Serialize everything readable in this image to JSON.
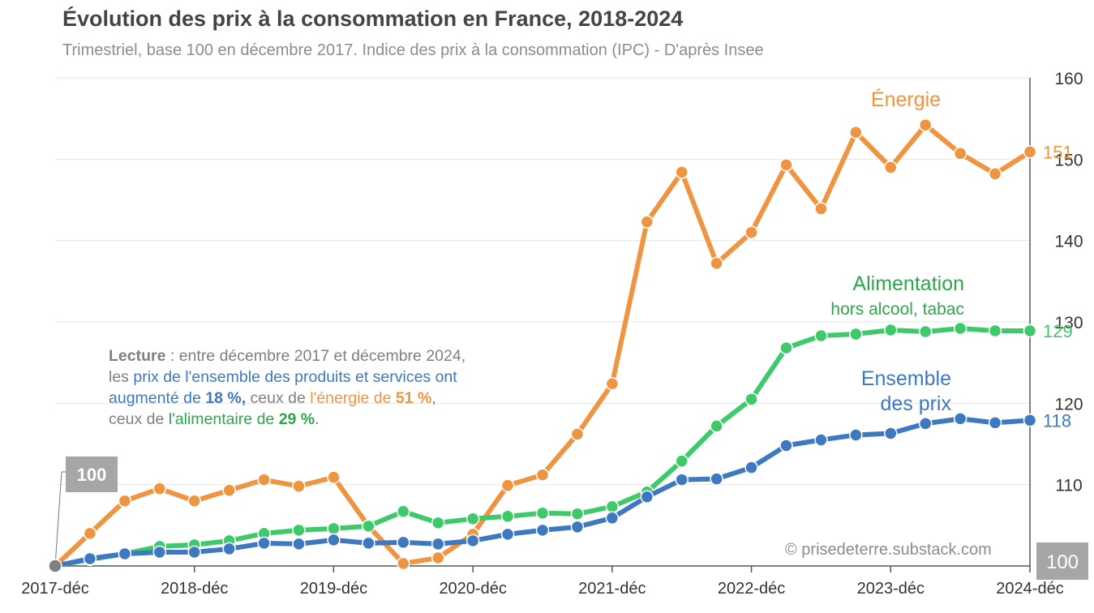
{
  "title": "Évolution des prix à la consommation en France, 2018-2024",
  "subtitle": "Trimestriel, base 100 en décembre 2017. Indice des prix à la consommation (IPC) - D'après Insee",
  "credit": "© prisedeterre.substack.com",
  "base_label": "100",
  "reading_note": {
    "lead": "Lecture",
    "line1_rest": " : entre décembre 2017 et décembre 2024,",
    "line2_a": "les ",
    "line2_b": "prix de l'ensemble des produits et services ont",
    "line3_a": "augmenté de ",
    "line3_b": "18 %",
    "line3_c": ",",
    "line3_d": " ceux de ",
    "line3_e": "l'énergie de ",
    "line3_f": "51 %",
    "line3_g": ",",
    "line4_a": "ceux de ",
    "line4_b": "l'alimentaire de ",
    "line4_c": "29 %",
    "line4_d": "."
  },
  "colors": {
    "energie": "#ef9440",
    "alimentation": "#3ec96a",
    "ensemble": "#3d78c0",
    "axis": "#555555",
    "grid": "#e6e6e6",
    "base_box": "#a6a6a6"
  },
  "chart_data": {
    "type": "line",
    "x": [
      "2017-déc",
      "2018-mars",
      "2018-juin",
      "2018-sept",
      "2018-déc",
      "2019-mars",
      "2019-juin",
      "2019-sept",
      "2019-déc",
      "2020-mars",
      "2020-juin",
      "2020-sept",
      "2020-déc",
      "2021-mars",
      "2021-juin",
      "2021-sept",
      "2021-déc",
      "2022-mars",
      "2022-juin",
      "2022-sept",
      "2022-déc",
      "2023-mars",
      "2023-juin",
      "2023-sept",
      "2023-déc",
      "2024-mars",
      "2024-juin",
      "2024-sept",
      "2024-déc"
    ],
    "x_tick_labels": [
      "2017-déc",
      "2018-déc",
      "2019-déc",
      "2020-déc",
      "2021-déc",
      "2022-déc",
      "2023-déc",
      "2024-déc"
    ],
    "ylim": [
      100,
      160
    ],
    "y_ticks": [
      100,
      110,
      120,
      130,
      140,
      150,
      160
    ],
    "y_tick_labels": [
      "110",
      "120",
      "130",
      "140",
      "150",
      "160"
    ],
    "grid": true,
    "y_axis_side": "right",
    "series": [
      {
        "key": "energie",
        "name": "Énergie",
        "end_label": "151",
        "values": [
          100,
          104,
          108,
          109.5,
          108,
          109.3,
          110.6,
          109.8,
          110.9,
          104.9,
          100.3,
          101,
          103.9,
          109.9,
          111.2,
          116.2,
          122.4,
          142.3,
          148.4,
          137.2,
          141,
          149.3,
          143.9,
          153.3,
          149,
          154.2,
          150.7,
          148.2,
          150.9
        ]
      },
      {
        "key": "alimentation",
        "name": "Alimentation",
        "name_line2": "hors alcool, tabac",
        "end_label": "129",
        "values": [
          100,
          100.8,
          101.5,
          102.4,
          102.6,
          103.1,
          104,
          104.4,
          104.6,
          104.9,
          106.7,
          105.3,
          105.8,
          106.1,
          106.5,
          106.4,
          107.3,
          109.1,
          112.9,
          117.2,
          120.5,
          126.8,
          128.3,
          128.5,
          129,
          128.8,
          129.2,
          128.9,
          128.9
        ]
      },
      {
        "key": "ensemble",
        "name": "Ensemble",
        "name_line2": "des prix",
        "end_label": "118",
        "values": [
          100,
          100.9,
          101.5,
          101.7,
          101.7,
          102.1,
          102.8,
          102.7,
          103.2,
          102.8,
          102.9,
          102.7,
          103.1,
          103.9,
          104.4,
          104.8,
          105.9,
          108.5,
          110.6,
          110.7,
          112.1,
          114.8,
          115.5,
          116.1,
          116.3,
          117.5,
          118.1,
          117.6,
          117.9
        ]
      }
    ]
  }
}
